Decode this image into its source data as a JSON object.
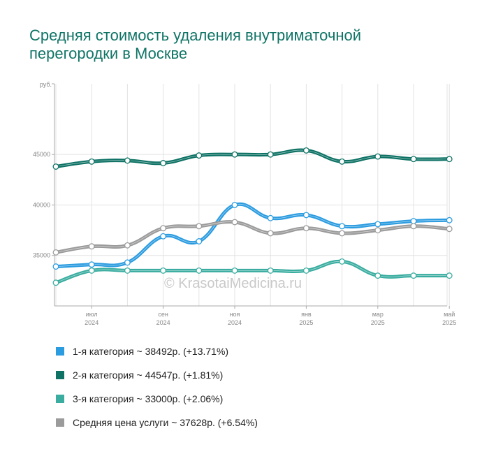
{
  "title": "Средняя стоимость удаления внутриматочной перегородки в Москве",
  "watermark": "© KrasotaiMedicina.ru",
  "chart_data": {
    "type": "line",
    "title": "Средняя стоимость удаления внутриматочной перегородки в Москве",
    "ylabel": "руб.",
    "ylim": [
      30000,
      52000
    ],
    "yticks": [
      35000,
      40000,
      45000
    ],
    "ytick_labels": [
      "35000",
      "40000",
      "45000"
    ],
    "x_ticks": [
      {
        "month": "июл",
        "year": "2024",
        "index": 1
      },
      {
        "month": "сен",
        "year": "2024",
        "index": 3
      },
      {
        "month": "ноя",
        "year": "2024",
        "index": 5
      },
      {
        "month": "янв",
        "year": "2025",
        "index": 7
      },
      {
        "month": "мар",
        "year": "2025",
        "index": 9
      },
      {
        "month": "май",
        "year": "2025",
        "index": 11
      }
    ],
    "x": [
      "2024-06",
      "2024-07",
      "2024-08",
      "2024-09",
      "2024-10",
      "2024-11",
      "2024-12",
      "2025-01",
      "2025-02",
      "2025-03",
      "2025-04",
      "2025-05"
    ],
    "grid": true,
    "series": [
      {
        "name": "2-я категория",
        "color": "#0e7265",
        "values": [
          43800,
          44300,
          44400,
          44150,
          44900,
          45000,
          45000,
          45400,
          44300,
          44800,
          44550,
          44547
        ]
      },
      {
        "name": "1-я категория",
        "color": "#2c9ce0",
        "values": [
          33900,
          34100,
          34300,
          36900,
          36400,
          40000,
          38700,
          39000,
          37900,
          38100,
          38400,
          38492
        ]
      },
      {
        "name": "Средняя цена услуги",
        "color": "#9b9b9b",
        "values": [
          35300,
          35900,
          36000,
          37700,
          37900,
          38300,
          37200,
          37700,
          37200,
          37500,
          37900,
          37628
        ]
      },
      {
        "name": "3-я категория",
        "color": "#3aada0",
        "values": [
          32300,
          33500,
          33500,
          33500,
          33500,
          33500,
          33500,
          33500,
          34400,
          33000,
          33000,
          33000
        ]
      }
    ]
  },
  "legend": [
    {
      "label": "1-я категория ~ 38492р. (+13.71%)",
      "color": "#2c9ce0"
    },
    {
      "label": "2-я категория ~ 44547р. (+1.81%)",
      "color": "#0e7265"
    },
    {
      "label": "3-я категория ~ 33000р. (+2.06%)",
      "color": "#3aada0"
    },
    {
      "label": "Средняя цена услуги ~ 37628р. (+6.54%)",
      "color": "#9b9b9b"
    }
  ]
}
